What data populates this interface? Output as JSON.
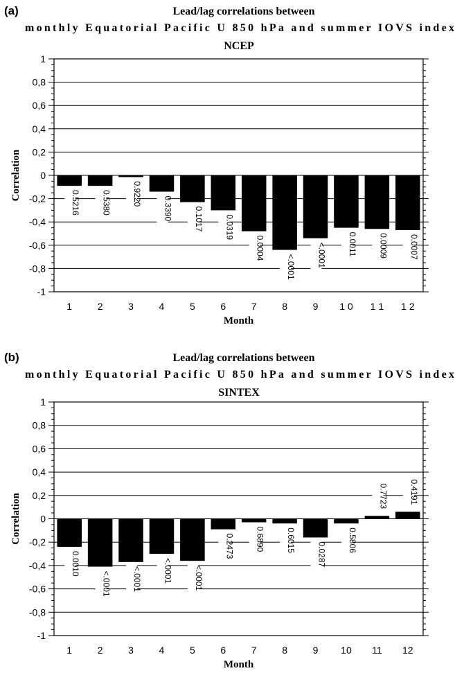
{
  "chart_data": [
    {
      "type": "bar",
      "panel_label": "(a)",
      "title_lines": [
        "Lead/lag correlations between",
        "monthly Equatorial Pacific U 850 hPa and summer IOVS index"
      ],
      "subtitle": "NCEP",
      "xlabel": "Month",
      "ylabel": "Correlation",
      "ylim": [
        -1,
        1
      ],
      "yticks": [
        1,
        0.8,
        0.6,
        0.4,
        0.2,
        0,
        -0.2,
        -0.4,
        -0.6,
        -0.8,
        -1
      ],
      "ytick_labels": [
        "1",
        "0,8",
        "0,6",
        "0,4",
        "0,2",
        "0",
        "-0,2",
        "-0,4",
        "-0,6",
        "-0,8",
        "-1"
      ],
      "grid": true,
      "categories": [
        "1",
        "2",
        "3",
        "4",
        "5",
        "6",
        "7",
        "8",
        "9",
        "1 0",
        "1 1",
        "1 2"
      ],
      "values": [
        -0.09,
        -0.09,
        -0.015,
        -0.14,
        -0.23,
        -0.3,
        -0.48,
        -0.64,
        -0.54,
        -0.45,
        -0.46,
        -0.47
      ],
      "p_values": [
        "0.5216",
        "0.5380",
        "0.9220",
        "0.3390",
        "0.1017",
        "0.0319",
        "0.0004",
        "<.0001",
        "<.0001",
        "0.0011",
        "0.0009",
        "0.0007"
      ],
      "bar_color": "#000000"
    },
    {
      "type": "bar",
      "panel_label": "(b)",
      "title_lines": [
        "Lead/lag correlations between",
        "monthly Equatorial Pacific U 850 hPa and summer IOVS index"
      ],
      "subtitle": "SINTEX",
      "xlabel": "Month",
      "ylabel": "Correlation",
      "ylim": [
        -1,
        1
      ],
      "yticks": [
        1,
        0.8,
        0.6,
        0.4,
        0.2,
        0,
        -0.2,
        -0.4,
        -0.6,
        -0.8,
        -1
      ],
      "ytick_labels": [
        "1",
        "0,8",
        "0,6",
        "0,4",
        "0,2",
        "0",
        "-0,2",
        "-0,4",
        "-0,6",
        "-0,8",
        "-1"
      ],
      "grid": true,
      "categories": [
        "1",
        "2",
        "3",
        "4",
        "5",
        "6",
        "7",
        "8",
        "9",
        "10",
        "11",
        "12"
      ],
      "values": [
        -0.24,
        -0.41,
        -0.37,
        -0.3,
        -0.36,
        -0.09,
        -0.03,
        -0.04,
        -0.16,
        -0.04,
        0.025,
        0.06
      ],
      "p_values": [
        "0.0010",
        "<.0001",
        "<.0001",
        "<.0001",
        "<.0001",
        "0.2473",
        "0.6890",
        "0.6015",
        "0.0287",
        "0.5806",
        "0.7723",
        "0.4191"
      ],
      "bar_color": "#000000"
    }
  ]
}
